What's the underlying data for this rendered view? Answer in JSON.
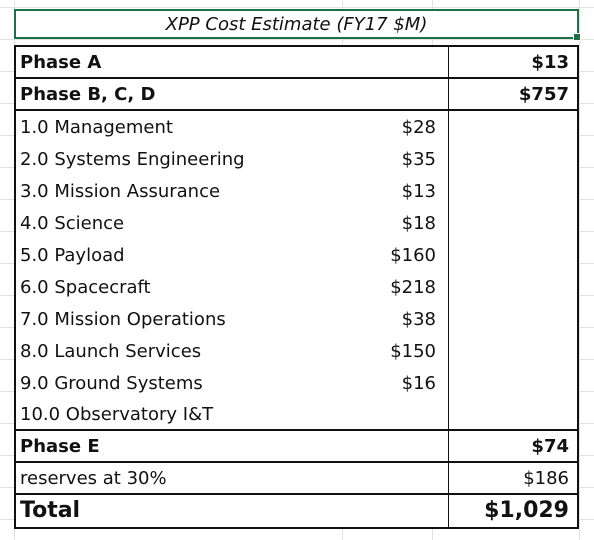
{
  "title": "XPP Cost Estimate (FY17 $M)",
  "rows": [
    {
      "label": "Phase A",
      "sub": "",
      "total": "$13",
      "bold": true
    },
    {
      "label": "Phase B, C, D",
      "sub": "",
      "total": "$757",
      "bold": true
    },
    {
      "label": "1.0 Management",
      "sub": "$28",
      "total": "",
      "bold": false
    },
    {
      "label": "2.0 Systems Engineering",
      "sub": "$35",
      "total": "",
      "bold": false
    },
    {
      "label": "3.0 Mission Assurance",
      "sub": "$13",
      "total": "",
      "bold": false
    },
    {
      "label": "4.0 Science",
      "sub": "$18",
      "total": "",
      "bold": false
    },
    {
      "label": "5.0 Payload",
      "sub": "$160",
      "total": "",
      "bold": false
    },
    {
      "label": "6.0 Spacecraft",
      "sub": "$218",
      "total": "",
      "bold": false
    },
    {
      "label": "7.0 Mission Operations",
      "sub": "$38",
      "total": "",
      "bold": false
    },
    {
      "label": "8.0 Launch Services",
      "sub": "$150",
      "total": "",
      "bold": false
    },
    {
      "label": "9.0 Ground Systems",
      "sub": "$16",
      "total": "",
      "bold": false
    },
    {
      "label": "10.0 Observatory I&T",
      "sub": "",
      "total": "",
      "bold": false
    },
    {
      "label": "Phase E",
      "sub": "",
      "total": "$74",
      "bold": true
    },
    {
      "label": "reserves at 30%",
      "sub": "",
      "total": "$186",
      "bold": false
    },
    {
      "label": "Total",
      "sub": "",
      "total": "$1,029",
      "bold": true
    }
  ],
  "selection_color": "#1e7145"
}
